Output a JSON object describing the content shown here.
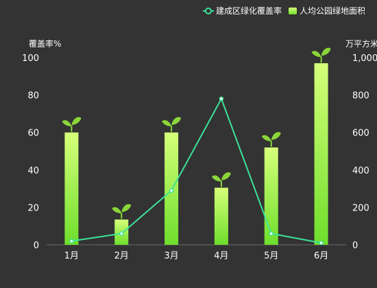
{
  "chart_data": {
    "type": "bar",
    "categories": [
      "1月",
      "2月",
      "3月",
      "4月",
      "5月",
      "6月"
    ],
    "left_axis": {
      "unit_label": "覆盖率%",
      "ylim": [
        0,
        100
      ],
      "ticks": [
        "0",
        "20",
        "40",
        "60",
        "80",
        "100"
      ]
    },
    "right_axis": {
      "unit_label": "万平方米",
      "ylim": [
        0,
        1000
      ],
      "ticks": [
        "0",
        "200",
        "400",
        "600",
        "800",
        "1,000"
      ]
    },
    "series": [
      {
        "name": "建成区绿化覆盖率",
        "type": "line",
        "axis": "left",
        "values": [
          2,
          6,
          29,
          78,
          6,
          1
        ]
      },
      {
        "name": "人均公园绿地面积",
        "type": "bar",
        "axis": "right",
        "values": [
          600,
          135,
          600,
          305,
          520,
          970
        ]
      }
    ],
    "legend": {
      "position": "top-right"
    },
    "grid": false,
    "colors": {
      "background": "#333333",
      "line": "#3de39a",
      "bar_top": "#d6ff7a",
      "bar_bottom": "#6ede2c",
      "leaf": "#8bd63a",
      "axis_text": "#ffffff"
    },
    "bar_icon": "sprout-icon"
  }
}
